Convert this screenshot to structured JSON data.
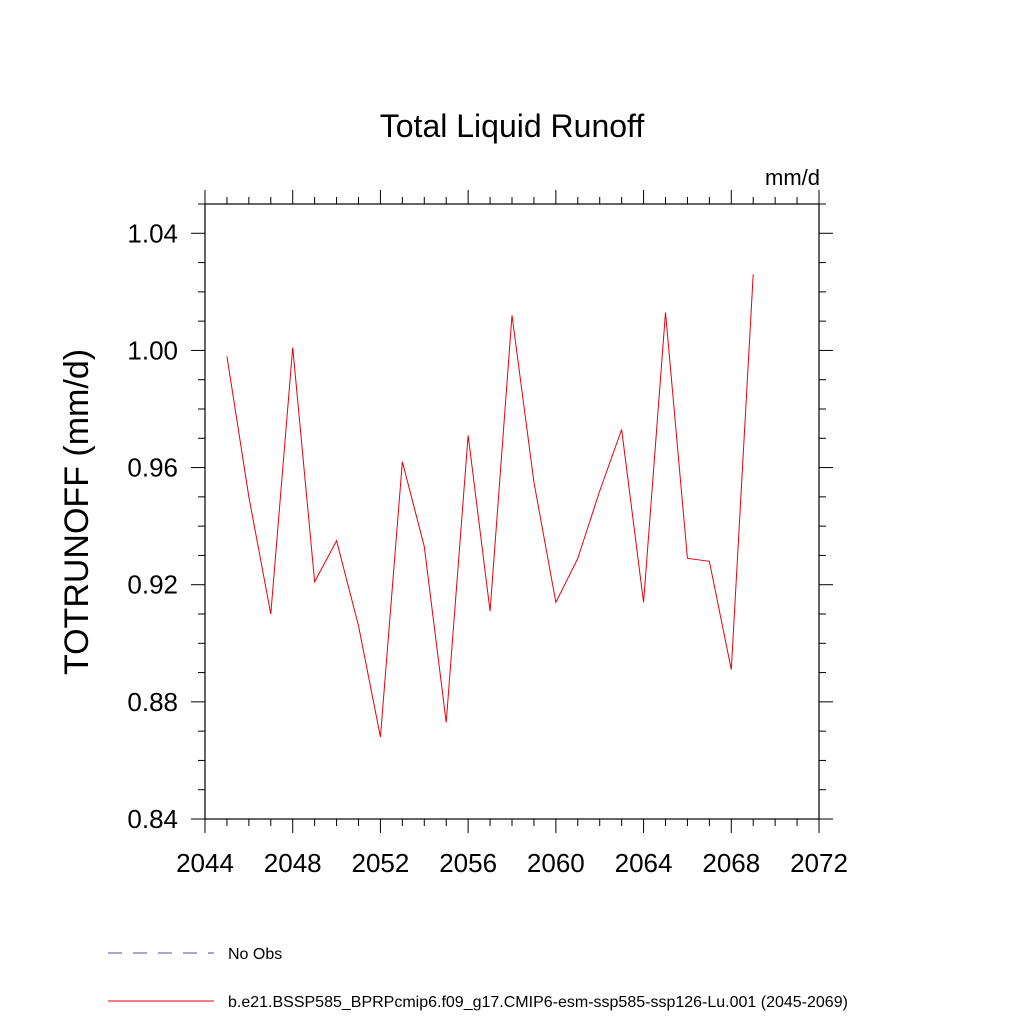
{
  "chart_data": {
    "type": "line",
    "title": "Total Liquid Runoff",
    "units_label": "mm/d",
    "ylabel": "TOTRUNOFF  (mm/d)",
    "xlabel": "",
    "xlim": [
      2044,
      2072
    ],
    "ylim": [
      0.84,
      1.05
    ],
    "x_ticks": [
      2044,
      2048,
      2052,
      2056,
      2060,
      2064,
      2068,
      2072
    ],
    "x_tick_labels": [
      "2044",
      "2048",
      "2052",
      "2056",
      "2060",
      "2064",
      "2068",
      "2072"
    ],
    "y_ticks": [
      0.84,
      0.88,
      0.92,
      0.96,
      1.0,
      1.04
    ],
    "y_tick_labels": [
      "0.84",
      "0.88",
      "0.92",
      "0.96",
      "1.00",
      "1.04"
    ],
    "grid": false,
    "legend_position": "bottom",
    "legend": [
      {
        "label": "No Obs",
        "color": "#5a4a9a",
        "style": "dashed"
      },
      {
        "label": "b.e21.BSSP585_BPRPcmip6.f09_g17.CMIP6-esm-ssp585-ssp126-Lu.001 (2045-2069)",
        "color": "#e8000b",
        "style": "solid"
      }
    ],
    "series": [
      {
        "color": "#e8000b",
        "x": [
          2045,
          2046,
          2047,
          2048,
          2049,
          2050,
          2051,
          2052,
          2053,
          2054,
          2055,
          2056,
          2057,
          2058,
          2059,
          2060,
          2061,
          2062,
          2063,
          2064,
          2065,
          2066,
          2067,
          2068,
          2069
        ],
        "values": [
          0.998,
          0.95,
          0.91,
          1.001,
          0.921,
          0.935,
          0.906,
          0.868,
          0.962,
          0.933,
          0.873,
          0.971,
          0.911,
          1.012,
          0.955,
          0.914,
          0.929,
          0.952,
          0.973,
          0.914,
          1.013,
          0.929,
          0.928,
          0.891,
          1.026
        ]
      }
    ]
  }
}
